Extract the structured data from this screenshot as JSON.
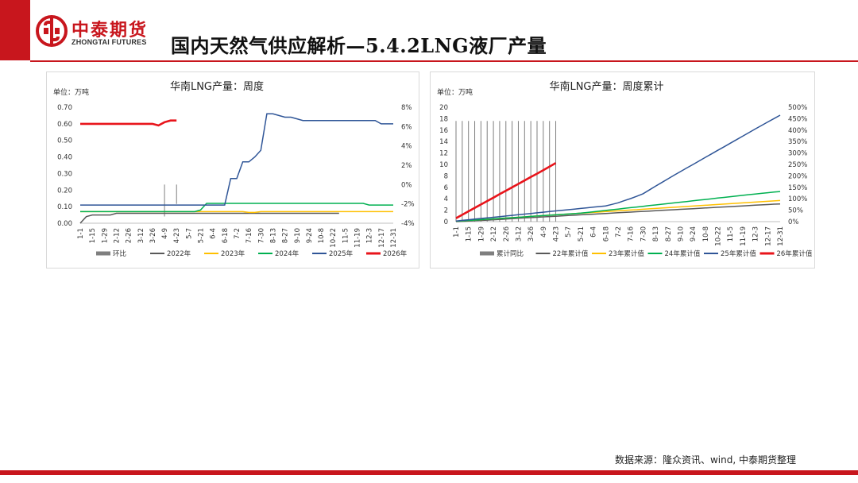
{
  "header": {
    "brand_cn": "中泰期货",
    "brand_en": "ZHONGTAI FUTURES",
    "page_title": "国内天然气供应解析—5.4.2LNG液厂产量",
    "brand_color": "#c8161d"
  },
  "footer": {
    "source": "数据来源：隆众资讯、wind, 中泰期货整理"
  },
  "chart_data": [
    {
      "type": "line",
      "title": "华南LNG产量：周度",
      "unit_label": "单位：万吨",
      "x_tick_labels": [
        "1-1",
        "1-15",
        "1-29",
        "2-12",
        "2-26",
        "3-12",
        "3-26",
        "4-9",
        "4-23",
        "5-7",
        "5-21",
        "6-4",
        "6-18",
        "7-2",
        "7-16",
        "7-30",
        "8-13",
        "8-27",
        "9-10",
        "9-24",
        "10-8",
        "10-22",
        "11-5",
        "11-19",
        "12-3",
        "12-17",
        "12-31"
      ],
      "x": [
        1,
        2,
        3,
        4,
        5,
        6,
        7,
        8,
        9,
        10,
        11,
        12,
        13,
        14,
        15,
        16,
        17,
        18,
        19,
        20,
        21,
        22,
        23,
        24,
        25,
        26,
        27,
        28,
        29,
        30,
        31,
        32,
        33,
        34,
        35,
        36,
        37,
        38,
        39,
        40,
        41,
        42,
        43,
        44,
        45,
        46,
        47,
        48,
        49,
        50,
        51,
        52,
        53
      ],
      "ylim_left": [
        0,
        0.7
      ],
      "yticks_left": [
        "0.00",
        "0.10",
        "0.20",
        "0.30",
        "0.40",
        "0.50",
        "0.60",
        "0.70"
      ],
      "ylim_right": [
        -4,
        8
      ],
      "yticks_right": [
        "-4%",
        "-2%",
        "0%",
        "2%",
        "4%",
        "6%",
        "8%"
      ],
      "grid": false,
      "legend_position": "bottom",
      "series": [
        {
          "name": "环比",
          "axis": "right",
          "kind": "bar",
          "color": "#7f7f7f",
          "values": [
            null,
            null,
            null,
            null,
            null,
            null,
            null,
            null,
            null,
            null,
            null,
            null,
            null,
            null,
            -3.3,
            null,
            -2.0,
            null,
            null,
            null,
            null,
            null,
            null,
            null,
            null,
            null,
            null,
            null,
            null,
            null,
            null,
            null,
            null,
            null,
            null,
            null,
            null,
            null,
            null,
            null,
            null,
            null,
            null,
            null,
            null,
            null,
            null,
            null,
            null,
            null,
            null,
            null,
            null
          ]
        },
        {
          "name": "2022年",
          "axis": "left",
          "kind": "line",
          "color": "#595959",
          "values": [
            0.0,
            0.04,
            0.05,
            0.05,
            0.05,
            0.05,
            0.06,
            0.06,
            0.06,
            0.06,
            0.06,
            0.06,
            0.06,
            0.06,
            0.06,
            0.06,
            0.06,
            0.06,
            0.06,
            0.06,
            0.06,
            0.06,
            0.06,
            0.06,
            0.06,
            0.06,
            0.06,
            0.06,
            0.06,
            0.06,
            0.06,
            0.06,
            0.06,
            0.06,
            0.06,
            0.06,
            0.06,
            0.06,
            0.06,
            0.06,
            0.06,
            0.06,
            0.06,
            0.06,
            null,
            null,
            null,
            null,
            null,
            null,
            null,
            null,
            null
          ]
        },
        {
          "name": "2023年",
          "axis": "left",
          "kind": "line",
          "color": "#ffc000",
          "values": [
            0.07,
            0.07,
            0.07,
            0.07,
            0.07,
            0.07,
            0.07,
            0.07,
            0.07,
            0.07,
            0.07,
            0.07,
            0.07,
            0.07,
            0.07,
            0.07,
            0.07,
            0.07,
            0.07,
            0.07,
            0.07,
            0.07,
            0.07,
            0.07,
            0.07,
            0.07,
            0.07,
            0.07,
            0.065,
            0.065,
            0.07,
            0.07,
            0.07,
            0.07,
            0.07,
            0.07,
            0.07,
            0.07,
            0.07,
            0.07,
            0.07,
            0.07,
            0.07,
            0.07,
            0.07,
            0.07,
            0.07,
            0.07,
            0.07,
            0.07,
            0.07,
            0.07,
            0.07
          ]
        },
        {
          "name": "2024年",
          "axis": "left",
          "kind": "line",
          "color": "#00b050",
          "values": [
            0.07,
            0.07,
            0.07,
            0.07,
            0.07,
            0.07,
            0.07,
            0.07,
            0.07,
            0.07,
            0.07,
            0.07,
            0.07,
            0.07,
            0.07,
            0.07,
            0.07,
            0.07,
            0.07,
            0.07,
            0.08,
            0.12,
            0.12,
            0.12,
            0.12,
            0.12,
            0.12,
            0.12,
            0.12,
            0.12,
            0.12,
            0.12,
            0.12,
            0.12,
            0.12,
            0.12,
            0.12,
            0.12,
            0.12,
            0.12,
            0.12,
            0.12,
            0.12,
            0.12,
            0.12,
            0.12,
            0.12,
            0.12,
            0.11,
            0.11,
            0.11,
            0.11,
            0.11
          ]
        },
        {
          "name": "2025年",
          "axis": "left",
          "kind": "line",
          "color": "#2f5597",
          "values": [
            0.11,
            0.11,
            0.11,
            0.11,
            0.11,
            0.11,
            0.11,
            0.11,
            0.11,
            0.11,
            0.11,
            0.11,
            0.11,
            0.11,
            0.11,
            0.11,
            0.11,
            0.11,
            0.11,
            0.11,
            0.11,
            0.11,
            0.11,
            0.11,
            0.11,
            0.27,
            0.27,
            0.37,
            0.37,
            0.4,
            0.44,
            0.66,
            0.66,
            0.65,
            0.64,
            0.64,
            0.63,
            0.62,
            0.62,
            0.62,
            0.62,
            0.62,
            0.62,
            0.62,
            0.62,
            0.62,
            0.62,
            0.62,
            0.62,
            0.62,
            0.6,
            0.6,
            0.6
          ]
        },
        {
          "name": "2026年",
          "axis": "left",
          "kind": "line",
          "color": "#e8141b",
          "values": [
            0.6,
            0.6,
            0.6,
            0.6,
            0.6,
            0.6,
            0.6,
            0.6,
            0.6,
            0.6,
            0.6,
            0.6,
            0.6,
            0.59,
            0.61,
            0.62,
            0.62,
            null,
            null,
            null,
            null,
            null,
            null,
            null,
            null,
            null,
            null,
            null,
            null,
            null,
            null,
            null,
            null,
            null,
            null,
            null,
            null,
            null,
            null,
            null,
            null,
            null,
            null,
            null,
            null,
            null,
            null,
            null,
            null,
            null,
            null,
            null,
            null
          ]
        }
      ]
    },
    {
      "type": "line",
      "title": "华南LNG产量：周度累计",
      "unit_label": "单位：万吨",
      "x_tick_labels": [
        "1-1",
        "1-15",
        "1-29",
        "2-12",
        "2-26",
        "3-12",
        "3-26",
        "4-9",
        "4-23",
        "5-7",
        "5-21",
        "6-4",
        "6-18",
        "7-2",
        "7-16",
        "7-30",
        "8-13",
        "8-27",
        "9-10",
        "9-24",
        "10-8",
        "10-22",
        "11-5",
        "11-19",
        "12-3",
        "12-17",
        "12-31"
      ],
      "x": [
        1,
        2,
        3,
        4,
        5,
        6,
        7,
        8,
        9,
        10,
        11,
        12,
        13,
        14,
        15,
        16,
        17,
        18,
        19,
        20,
        21,
        22,
        23,
        24,
        25,
        26,
        27,
        28,
        29,
        30,
        31,
        32,
        33,
        34,
        35,
        36,
        37,
        38,
        39,
        40,
        41,
        42,
        43,
        44,
        45,
        46,
        47,
        48,
        49,
        50,
        51,
        52,
        53
      ],
      "ylim_left": [
        0,
        20
      ],
      "yticks_left": [
        "0",
        "2",
        "4",
        "6",
        "8",
        "10",
        "12",
        "14",
        "16",
        "18",
        "20"
      ],
      "ylim_right": [
        0,
        500
      ],
      "yticks_right": [
        "0%",
        "50%",
        "100%",
        "150%",
        "200%",
        "250%",
        "300%",
        "350%",
        "400%",
        "450%",
        "500%"
      ],
      "grid": false,
      "legend_position": "bottom",
      "series": [
        {
          "name": "累计同比",
          "axis": "right",
          "kind": "bar",
          "color": "#7f7f7f",
          "values": [
            440,
            440,
            440,
            440,
            440,
            440,
            440,
            440,
            440,
            440,
            440,
            440,
            440,
            440,
            440,
            440,
            440,
            null,
            null,
            null,
            null,
            null,
            null,
            null,
            null,
            null,
            null,
            null,
            null,
            null,
            null,
            null,
            null,
            null,
            null,
            null,
            null,
            null,
            null,
            null,
            null,
            null,
            null,
            null,
            null,
            null,
            null,
            null,
            null,
            null,
            null,
            null,
            null
          ]
        },
        {
          "name": "22年累计值",
          "axis": "left",
          "kind": "line",
          "color": "#595959",
          "values": [
            0.0,
            0.05,
            0.1,
            0.16,
            0.21,
            0.27,
            0.33,
            0.39,
            0.45,
            0.52,
            0.58,
            0.65,
            0.71,
            0.77,
            0.83,
            0.89,
            0.95,
            1.01,
            1.07,
            1.13,
            1.19,
            1.25,
            1.31,
            1.37,
            1.43,
            1.49,
            1.55,
            1.61,
            1.67,
            1.73,
            1.79,
            1.85,
            1.91,
            1.97,
            2.03,
            2.09,
            2.15,
            2.21,
            2.27,
            2.33,
            2.39,
            2.45,
            2.51,
            2.57,
            2.63,
            2.69,
            2.75,
            2.81,
            2.87,
            2.93,
            2.99,
            3.05,
            3.1
          ]
        },
        {
          "name": "23年累计值",
          "axis": "left",
          "kind": "line",
          "color": "#ffc000",
          "values": [
            0.07,
            0.14,
            0.21,
            0.28,
            0.35,
            0.42,
            0.49,
            0.56,
            0.63,
            0.7,
            0.77,
            0.84,
            0.91,
            0.98,
            1.05,
            1.12,
            1.19,
            1.26,
            1.33,
            1.4,
            1.47,
            1.54,
            1.61,
            1.68,
            1.75,
            1.82,
            1.89,
            1.96,
            2.03,
            2.09,
            2.16,
            2.23,
            2.3,
            2.37,
            2.44,
            2.51,
            2.58,
            2.65,
            2.72,
            2.79,
            2.86,
            2.93,
            3.0,
            3.07,
            3.14,
            3.21,
            3.28,
            3.35,
            3.42,
            3.49,
            3.56,
            3.63,
            3.7
          ]
        },
        {
          "name": "24年累计值",
          "axis": "left",
          "kind": "line",
          "color": "#00b050",
          "values": [
            0.07,
            0.14,
            0.21,
            0.28,
            0.35,
            0.42,
            0.49,
            0.56,
            0.63,
            0.7,
            0.77,
            0.84,
            0.91,
            0.98,
            1.05,
            1.12,
            1.19,
            1.26,
            1.33,
            1.4,
            1.48,
            1.6,
            1.72,
            1.84,
            1.96,
            2.08,
            2.2,
            2.32,
            2.44,
            2.56,
            2.68,
            2.8,
            2.92,
            3.04,
            3.16,
            3.28,
            3.4,
            3.52,
            3.64,
            3.76,
            3.88,
            4.0,
            4.12,
            4.24,
            4.36,
            4.48,
            4.6,
            4.72,
            4.83,
            4.94,
            5.05,
            5.16,
            5.27
          ]
        },
        {
          "name": "25年累计值",
          "axis": "left",
          "kind": "line",
          "color": "#2f5597",
          "values": [
            0.11,
            0.22,
            0.33,
            0.44,
            0.55,
            0.66,
            0.77,
            0.88,
            0.99,
            1.1,
            1.21,
            1.32,
            1.43,
            1.54,
            1.65,
            1.76,
            1.87,
            1.98,
            2.09,
            2.2,
            2.31,
            2.42,
            2.53,
            2.64,
            2.75,
            3.02,
            3.29,
            3.66,
            4.03,
            4.43,
            4.87,
            5.53,
            6.19,
            6.84,
            7.48,
            8.12,
            8.75,
            9.37,
            9.99,
            10.61,
            11.23,
            11.85,
            12.47,
            13.09,
            13.71,
            14.33,
            14.95,
            15.57,
            16.19,
            16.81,
            17.41,
            18.01,
            18.61
          ]
        },
        {
          "name": "26年累计值",
          "axis": "left",
          "kind": "line",
          "color": "#e8141b",
          "values": [
            0.6,
            1.2,
            1.8,
            2.4,
            3.0,
            3.6,
            4.2,
            4.8,
            5.4,
            6.0,
            6.6,
            7.2,
            7.8,
            8.39,
            9.0,
            9.62,
            10.24,
            null,
            null,
            null,
            null,
            null,
            null,
            null,
            null,
            null,
            null,
            null,
            null,
            null,
            null,
            null,
            null,
            null,
            null,
            null,
            null,
            null,
            null,
            null,
            null,
            null,
            null,
            null,
            null,
            null,
            null,
            null,
            null,
            null,
            null,
            null,
            null
          ]
        }
      ]
    }
  ]
}
